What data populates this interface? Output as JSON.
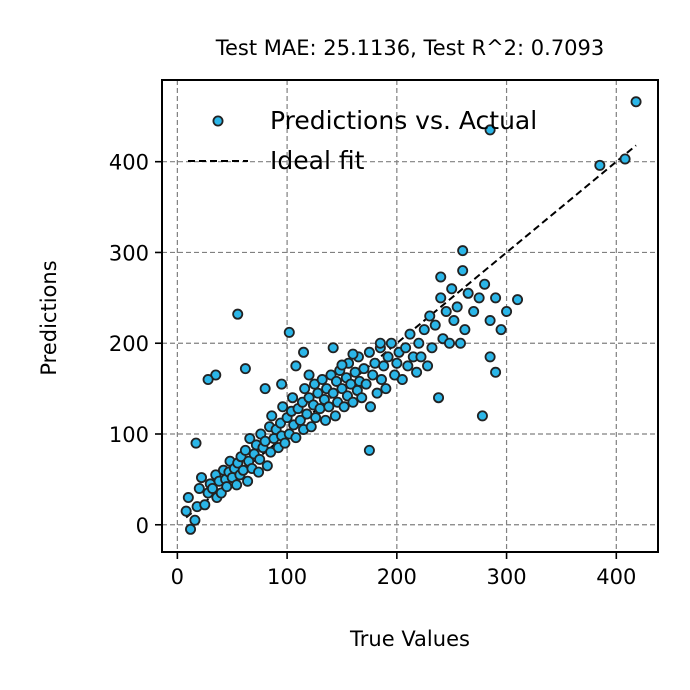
{
  "chart_data": {
    "type": "scatter",
    "title": "Test MAE: 25.1136, Test R^2: 0.7093",
    "xlabel": "True Values",
    "ylabel": "Predictions",
    "xlim": [
      -14,
      438
    ],
    "ylim": [
      -30,
      490
    ],
    "xticks": [
      0,
      100,
      200,
      300,
      400
    ],
    "yticks": [
      0,
      100,
      200,
      300,
      400
    ],
    "grid": true,
    "legend_position": "top-left",
    "series": [
      {
        "name": "Predictions vs. Actual",
        "kind": "scatter",
        "color": "#2bb6e8",
        "edge_color": "#222222",
        "points": [
          [
            8,
            15
          ],
          [
            10,
            30
          ],
          [
            12,
            -5
          ],
          [
            16,
            5
          ],
          [
            18,
            20
          ],
          [
            20,
            40
          ],
          [
            22,
            52
          ],
          [
            25,
            22
          ],
          [
            28,
            35
          ],
          [
            30,
            45
          ],
          [
            32,
            40
          ],
          [
            35,
            55
          ],
          [
            36,
            30
          ],
          [
            38,
            48
          ],
          [
            40,
            35
          ],
          [
            42,
            60
          ],
          [
            44,
            50
          ],
          [
            45,
            42
          ],
          [
            47,
            58
          ],
          [
            48,
            70
          ],
          [
            50,
            52
          ],
          [
            52,
            62
          ],
          [
            54,
            44
          ],
          [
            55,
            68
          ],
          [
            57,
            55
          ],
          [
            58,
            75
          ],
          [
            60,
            60
          ],
          [
            62,
            82
          ],
          [
            64,
            48
          ],
          [
            65,
            70
          ],
          [
            66,
            95
          ],
          [
            68,
            62
          ],
          [
            70,
            78
          ],
          [
            72,
            88
          ],
          [
            74,
            58
          ],
          [
            75,
            72
          ],
          [
            76,
            100
          ],
          [
            78,
            85
          ],
          [
            80,
            92
          ],
          [
            82,
            65
          ],
          [
            84,
            108
          ],
          [
            85,
            80
          ],
          [
            86,
            120
          ],
          [
            88,
            95
          ],
          [
            90,
            105
          ],
          [
            92,
            85
          ],
          [
            94,
            112
          ],
          [
            95,
            98
          ],
          [
            96,
            130
          ],
          [
            98,
            90
          ],
          [
            100,
            118
          ],
          [
            102,
            100
          ],
          [
            104,
            125
          ],
          [
            105,
            140
          ],
          [
            106,
            110
          ],
          [
            108,
            96
          ],
          [
            110,
            128
          ],
          [
            112,
            115
          ],
          [
            114,
            135
          ],
          [
            115,
            105
          ],
          [
            116,
            150
          ],
          [
            118,
            122
          ],
          [
            120,
            140
          ],
          [
            122,
            108
          ],
          [
            124,
            132
          ],
          [
            125,
            155
          ],
          [
            126,
            118
          ],
          [
            128,
            145
          ],
          [
            130,
            128
          ],
          [
            132,
            160
          ],
          [
            134,
            138
          ],
          [
            135,
            115
          ],
          [
            136,
            150
          ],
          [
            138,
            130
          ],
          [
            140,
            165
          ],
          [
            142,
            145
          ],
          [
            144,
            120
          ],
          [
            145,
            158
          ],
          [
            146,
            135
          ],
          [
            148,
            170
          ],
          [
            150,
            150
          ],
          [
            152,
            130
          ],
          [
            154,
            162
          ],
          [
            155,
            142
          ],
          [
            156,
            178
          ],
          [
            158,
            155
          ],
          [
            160,
            135
          ],
          [
            162,
            168
          ],
          [
            164,
            148
          ],
          [
            165,
            185
          ],
          [
            166,
            158
          ],
          [
            168,
            140
          ],
          [
            170,
            172
          ],
          [
            172,
            155
          ],
          [
            175,
            190
          ],
          [
            176,
            130
          ],
          [
            178,
            165
          ],
          [
            180,
            178
          ],
          [
            182,
            145
          ],
          [
            185,
            195
          ],
          [
            186,
            160
          ],
          [
            188,
            175
          ],
          [
            190,
            150
          ],
          [
            192,
            185
          ],
          [
            195,
            200
          ],
          [
            198,
            165
          ],
          [
            200,
            178
          ],
          [
            202,
            190
          ],
          [
            205,
            160
          ],
          [
            208,
            195
          ],
          [
            210,
            175
          ],
          [
            212,
            210
          ],
          [
            215,
            185
          ],
          [
            218,
            168
          ],
          [
            220,
            200
          ],
          [
            222,
            185
          ],
          [
            225,
            215
          ],
          [
            228,
            175
          ],
          [
            230,
            230
          ],
          [
            232,
            195
          ],
          [
            235,
            220
          ],
          [
            238,
            140
          ],
          [
            240,
            250
          ],
          [
            242,
            205
          ],
          [
            245,
            235
          ],
          [
            248,
            200
          ],
          [
            250,
            260
          ],
          [
            252,
            225
          ],
          [
            255,
            240
          ],
          [
            258,
            200
          ],
          [
            260,
            280
          ],
          [
            262,
            215
          ],
          [
            265,
            255
          ],
          [
            270,
            235
          ],
          [
            275,
            250
          ],
          [
            278,
            120
          ],
          [
            280,
            265
          ],
          [
            285,
            225
          ],
          [
            290,
            250
          ],
          [
            295,
            215
          ],
          [
            300,
            235
          ],
          [
            310,
            248
          ],
          [
            385,
            396
          ],
          [
            408,
            403
          ],
          [
            418,
            466
          ],
          [
            285,
            435
          ],
          [
            260,
            302
          ],
          [
            240,
            273
          ],
          [
            62,
            172
          ],
          [
            35,
            165
          ],
          [
            17,
            90
          ],
          [
            28,
            160
          ],
          [
            55,
            232
          ],
          [
            102,
            212
          ],
          [
            108,
            175
          ],
          [
            175,
            82
          ],
          [
            285,
            185
          ],
          [
            290,
            168
          ],
          [
            185,
            200
          ],
          [
            150,
            176
          ],
          [
            120,
            165
          ],
          [
            95,
            155
          ],
          [
            80,
            150
          ],
          [
            160,
            188
          ],
          [
            142,
            195
          ],
          [
            115,
            190
          ]
        ]
      },
      {
        "name": "Ideal fit",
        "kind": "line",
        "style": "dashed",
        "color": "#000000",
        "x": [
          8,
          418
        ],
        "y": [
          8,
          418
        ]
      }
    ]
  }
}
